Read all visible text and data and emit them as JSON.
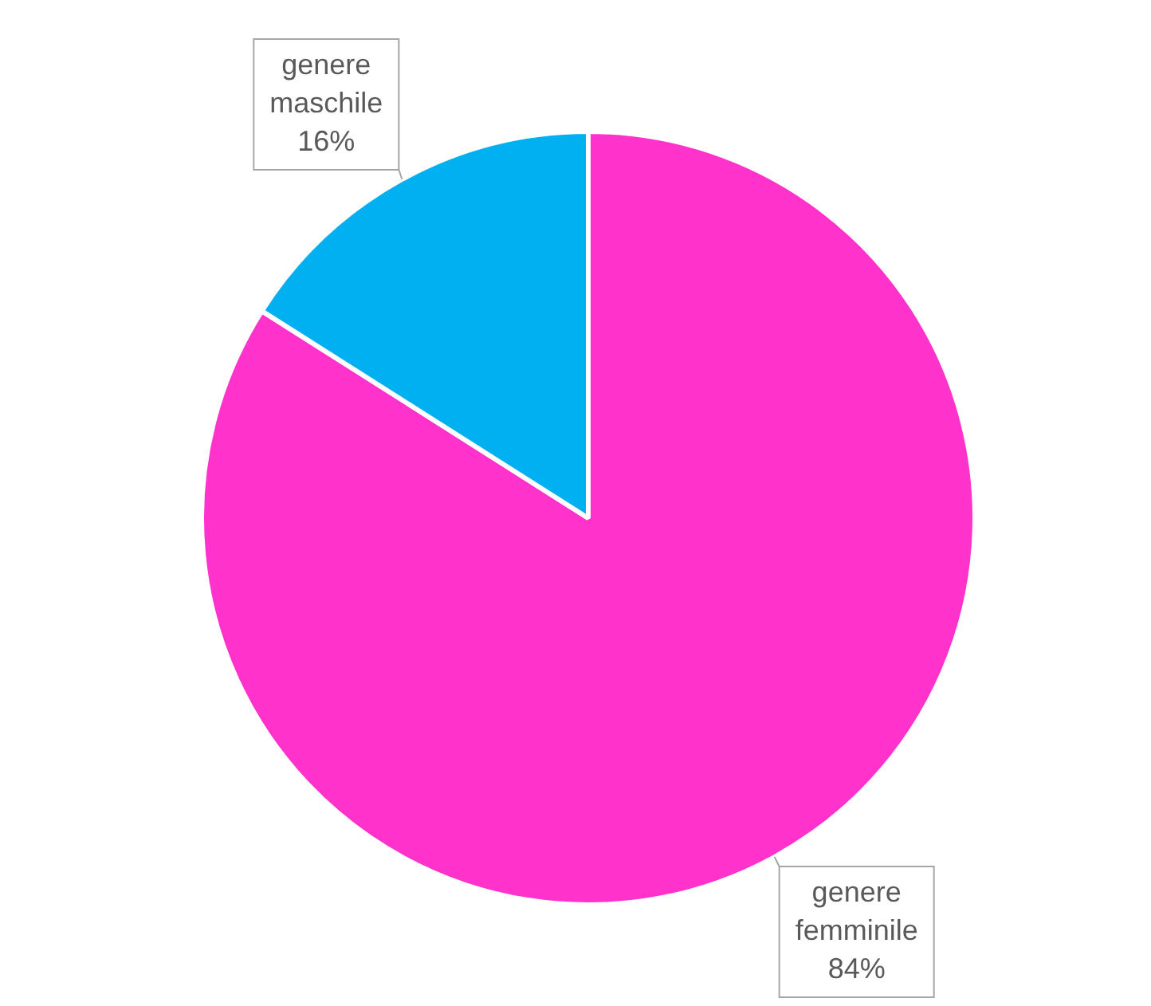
{
  "chart_data": {
    "type": "pie",
    "categories": [
      "genere femminile",
      "genere maschile"
    ],
    "values": [
      84,
      16
    ],
    "colors": [
      "#ff33cc",
      "#00b0f0"
    ],
    "value_labels": [
      "84%",
      "16%"
    ],
    "legend": false
  }
}
